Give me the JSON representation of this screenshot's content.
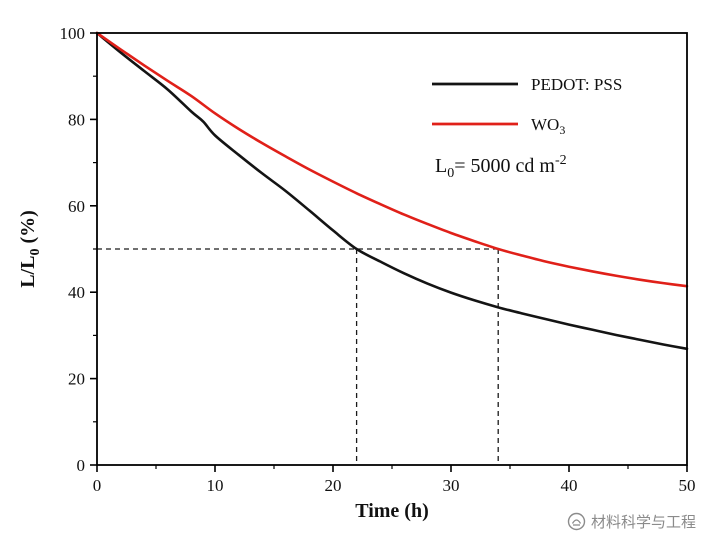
{
  "chart_data": {
    "type": "line",
    "title": "",
    "xlabel": "Time (h)",
    "ylabel_parts": {
      "main": "L/L",
      "sub": "0",
      "rest": " (%)"
    },
    "xlim": [
      0,
      50
    ],
    "ylim": [
      0,
      100
    ],
    "x_major_ticks": [
      0,
      10,
      20,
      30,
      40,
      50
    ],
    "x_minor_ticks": [
      5,
      15,
      25,
      35,
      45
    ],
    "y_major_ticks": [
      0,
      20,
      40,
      60,
      80,
      100
    ],
    "y_minor_ticks": [
      10,
      30,
      50,
      70,
      90
    ],
    "grid": false,
    "legend_position": "upper-right",
    "series": [
      {
        "name": "PEDOT: PSS",
        "name_parts": {
          "main": "PEDOT: PSS",
          "sub": ""
        },
        "color": "#141414",
        "x": [
          0,
          2,
          4,
          6,
          8,
          9,
          10,
          12,
          14,
          16,
          18,
          20,
          22,
          24,
          26,
          28,
          30,
          32,
          34,
          36,
          38,
          40,
          42,
          44,
          46,
          48,
          50
        ],
        "y": [
          100,
          95.5,
          91.2,
          86.9,
          81.8,
          79.5,
          76.3,
          71.8,
          67.5,
          63.4,
          58.9,
          54.3,
          50,
          47.1,
          44.4,
          42,
          39.9,
          38.1,
          36.5,
          35.1,
          33.8,
          32.5,
          31.3,
          30.1,
          29,
          27.9,
          26.9
        ]
      },
      {
        "name": "WO3",
        "name_parts": {
          "main": "WO",
          "sub": "3"
        },
        "color": "#e02019",
        "x": [
          0,
          2,
          4,
          6,
          8,
          10,
          12,
          14,
          16,
          18,
          20,
          22,
          24,
          26,
          28,
          30,
          32,
          34,
          36,
          38,
          40,
          42,
          44,
          46,
          48,
          50
        ],
        "y": [
          100,
          96.2,
          92.5,
          88.9,
          85.4,
          81.4,
          77.8,
          74.5,
          71.4,
          68.4,
          65.6,
          62.9,
          60.4,
          58,
          55.8,
          53.7,
          51.8,
          50,
          48.5,
          47.1,
          45.9,
          44.8,
          43.8,
          42.9,
          42.1,
          41.4
        ]
      }
    ],
    "reference_lines": {
      "level": 50,
      "x_cross": [
        22,
        34
      ],
      "style": "dashed",
      "color": "#1a1a1a"
    },
    "annotation": {
      "parts": {
        "pre": "L",
        "sub": "0",
        "mid": "= 5000 cd m",
        "sup": "-2"
      }
    }
  },
  "watermark": {
    "text": "材料科学与工程"
  }
}
